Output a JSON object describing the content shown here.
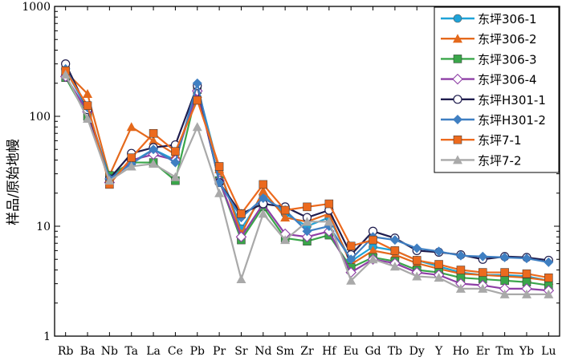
{
  "chart_data": {
    "type": "line",
    "ylabel": "样品/原始地幔",
    "yscale": "log",
    "ylim": [
      1,
      1000
    ],
    "y_ticks": [
      "1",
      "10",
      "100",
      "1000"
    ],
    "grid": false,
    "legend_position": "top-right",
    "categories": [
      "Rb",
      "Ba",
      "Nb",
      "Ta",
      "La",
      "Ce",
      "Pb",
      "Pr",
      "Sr",
      "Nd",
      "Sm",
      "Zr",
      "Hf",
      "Eu",
      "Gd",
      "Tb",
      "Dy",
      "Y",
      "Ho",
      "Er",
      "Tm",
      "Yb",
      "Lu"
    ],
    "series": [
      {
        "name": "东坪306-1",
        "color": "#1fa3d8",
        "marker": "circle-filled",
        "values": [
          265,
          115,
          28,
          38,
          50,
          40,
          185,
          32,
          9.5,
          19,
          13,
          10,
          12,
          4.8,
          6.5,
          6.0,
          4.9,
          4.3,
          3.8,
          3.6,
          3.6,
          3.5,
          3.2
        ]
      },
      {
        "name": "东坪306-2",
        "color": "#e4691c",
        "marker": "triangle-up",
        "values": [
          255,
          160,
          29,
          80,
          60,
          45,
          160,
          33,
          8.5,
          21,
          12,
          11,
          13,
          4.5,
          6.0,
          5.5,
          4.6,
          4.1,
          3.7,
          3.6,
          3.5,
          3.4,
          3.2
        ]
      },
      {
        "name": "东坪306-3",
        "color": "#3aa64a",
        "marker": "square",
        "values": [
          225,
          100,
          29,
          38,
          38,
          26,
          175,
          26,
          7.5,
          15,
          7.8,
          7.3,
          8.3,
          4.2,
          5.2,
          4.8,
          4.0,
          3.8,
          3.4,
          3.3,
          3.2,
          3.1,
          2.9
        ]
      },
      {
        "name": "东坪306-4",
        "color": "#8e3fa6",
        "marker": "diamond-open",
        "values": [
          230,
          110,
          25,
          40,
          45,
          40,
          170,
          26,
          8.0,
          16,
          8.5,
          8.0,
          9.0,
          3.8,
          5.0,
          4.6,
          3.8,
          3.6,
          3.0,
          2.9,
          2.7,
          2.7,
          2.6
        ]
      },
      {
        "name": "东坪H301-1",
        "color": "#1f1d4e",
        "marker": "circle-open",
        "values": [
          300,
          115,
          27,
          46,
          52,
          55,
          190,
          25,
          13,
          16,
          15,
          12,
          14,
          5.5,
          9.0,
          7.8,
          6.0,
          5.8,
          5.5,
          5.0,
          5.3,
          5.2,
          4.9
        ]
      },
      {
        "name": "东坪H301-2",
        "color": "#3f7fc2",
        "marker": "diamond-filled",
        "values": [
          270,
          120,
          27,
          37,
          50,
          38,
          200,
          25,
          12,
          18,
          14,
          9.0,
          10,
          5.0,
          8.0,
          7.5,
          6.3,
          5.9,
          5.4,
          5.3,
          5.2,
          5.1,
          4.7
        ]
      },
      {
        "name": "东坪7-1",
        "color": "#ec6a1e",
        "marker": "square",
        "values": [
          260,
          125,
          24,
          42,
          70,
          48,
          140,
          35,
          13,
          24,
          14,
          15,
          16,
          6.6,
          7.5,
          6.0,
          4.9,
          4.5,
          4.0,
          3.8,
          3.8,
          3.7,
          3.4
        ]
      },
      {
        "name": "东坪7-2",
        "color": "#a9a9a9",
        "marker": "triangle-up",
        "values": [
          240,
          95,
          26,
          35,
          37,
          28,
          80,
          20,
          3.3,
          13,
          7.5,
          11,
          11,
          3.2,
          5.0,
          4.3,
          3.5,
          3.4,
          2.7,
          2.7,
          2.4,
          2.4,
          2.4
        ]
      }
    ]
  }
}
